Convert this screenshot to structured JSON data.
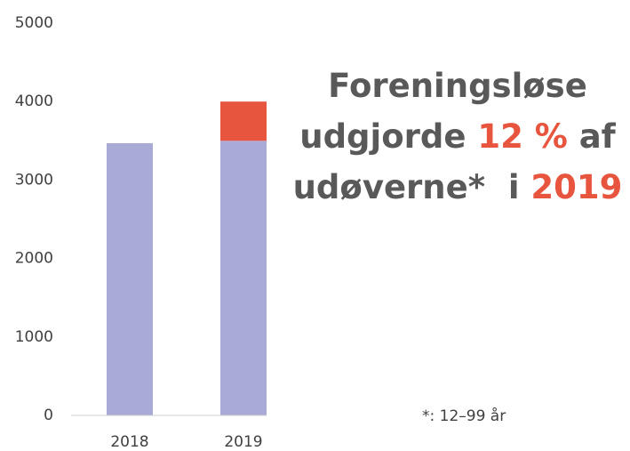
{
  "chart_data": {
    "type": "stacked_bar",
    "categories": [
      "2018",
      "2019"
    ],
    "series": [
      {
        "color": "#aaaad6",
        "values": [
          3470,
          3500
        ]
      },
      {
        "color": "#e8553f",
        "values": [
          null,
          500
        ]
      }
    ],
    "ylim": [
      0,
      5000
    ],
    "yticks": [
      0,
      1000,
      2000,
      3000,
      4000,
      5000
    ],
    "grid": false,
    "annotation": [
      [
        {
          "text": "Foreningsløse",
          "color": "#595959"
        }
      ],
      [
        {
          "text": "udgjorde ",
          "color": "#595959"
        },
        {
          "text": "12 %",
          "color": "#e8553f"
        },
        {
          "text": " af",
          "color": "#595959"
        }
      ],
      [
        {
          "text": "udøverne*  i ",
          "color": "#595959"
        },
        {
          "text": "2019",
          "color": "#e8553f"
        }
      ]
    ],
    "footnote": "*: 12–99 år"
  }
}
